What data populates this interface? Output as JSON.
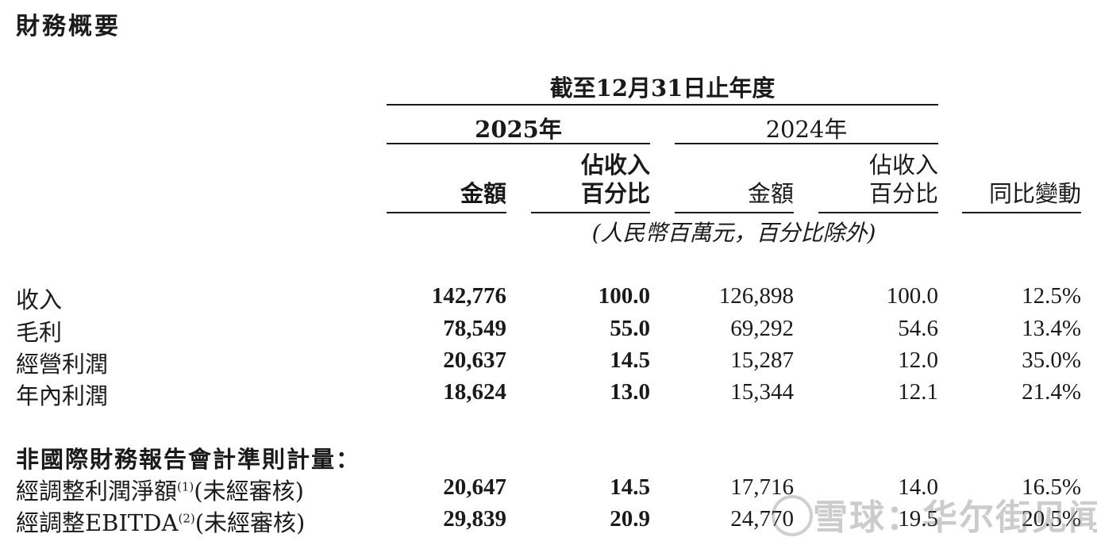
{
  "title": "財務概要",
  "period_header": "截至12月31日止年度",
  "years": {
    "current": "2025年",
    "prior": "2024年"
  },
  "columns": {
    "amount": "金額",
    "pct_line1": "佔收入",
    "pct_line2": "百分比",
    "yoy": "同比變動"
  },
  "unit_note": "(人民幣百萬元，百分比除外)",
  "rows": [
    {
      "label": "收入",
      "amount_2025": "142,776",
      "pct_2025": "100.0",
      "amount_2024": "126,898",
      "pct_2024": "100.0",
      "yoy": "12.5%"
    },
    {
      "label": "毛利",
      "amount_2025": "78,549",
      "pct_2025": "55.0",
      "amount_2024": "69,292",
      "pct_2024": "54.6",
      "yoy": "13.4%"
    },
    {
      "label": "經營利潤",
      "amount_2025": "20,637",
      "pct_2025": "14.5",
      "amount_2024": "15,287",
      "pct_2024": "12.0",
      "yoy": "35.0%"
    },
    {
      "label": "年內利潤",
      "amount_2025": "18,624",
      "pct_2025": "13.0",
      "amount_2024": "15,344",
      "pct_2024": "12.1",
      "yoy": "21.4%"
    }
  ],
  "non_ifrs_section": "非國際財務報告會計準則計量：",
  "non_ifrs_rows": [
    {
      "label": "經調整利潤淨額",
      "note": "(1)",
      "suffix": "(未經審核)",
      "amount_2025": "20,647",
      "pct_2025": "14.5",
      "amount_2024": "17,716",
      "pct_2024": "14.0",
      "yoy": "16.5%"
    },
    {
      "label": "經調整EBITDA",
      "note": "(2)",
      "suffix": "(未經審核)",
      "amount_2025": "29,839",
      "pct_2025": "20.9",
      "amount_2024": "24,770",
      "pct_2024": "19.5",
      "yoy": "20.5%"
    }
  ],
  "watermark": "雪球：华尔街见闻"
}
